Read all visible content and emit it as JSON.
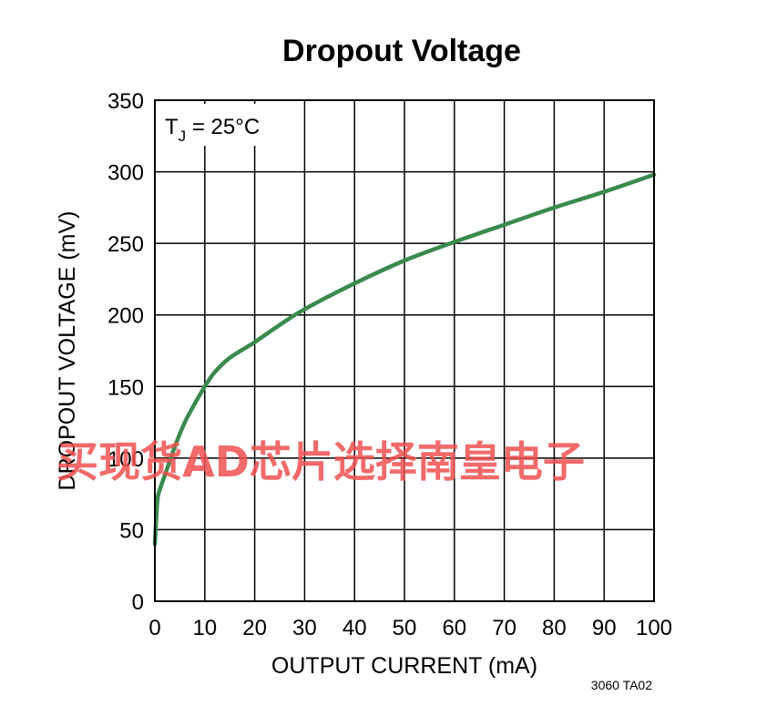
{
  "chart_data": {
    "type": "line",
    "title": "Dropout Voltage",
    "xlabel": "OUTPUT CURRENT (mA)",
    "ylabel": "DROPOUT VOLTAGE (mV)",
    "xlim": [
      0,
      100
    ],
    "ylim": [
      0,
      350
    ],
    "x_ticks": [
      "0",
      "10",
      "20",
      "30",
      "40",
      "50",
      "60",
      "70",
      "80",
      "90",
      "100"
    ],
    "y_ticks": [
      "0",
      "50",
      "100",
      "150",
      "200",
      "250",
      "300",
      "350"
    ],
    "grid": true,
    "annotation": {
      "base": "T",
      "sub": "J",
      "rest": " = 25°C"
    },
    "series": [
      {
        "color": "#3a8a4f",
        "x": [
          0,
          0.5,
          1,
          2,
          4,
          6,
          8,
          10,
          12,
          15,
          20,
          25,
          30,
          40,
          50,
          60,
          70,
          80,
          90,
          100
        ],
        "y": [
          40,
          70,
          78,
          88,
          108,
          125,
          138,
          150,
          160,
          170,
          181,
          193,
          204,
          222,
          238,
          251,
          263,
          275,
          286,
          298
        ]
      }
    ]
  },
  "footnote": "3060 TA02",
  "watermark": "买现货AD芯片选择南皇电子"
}
